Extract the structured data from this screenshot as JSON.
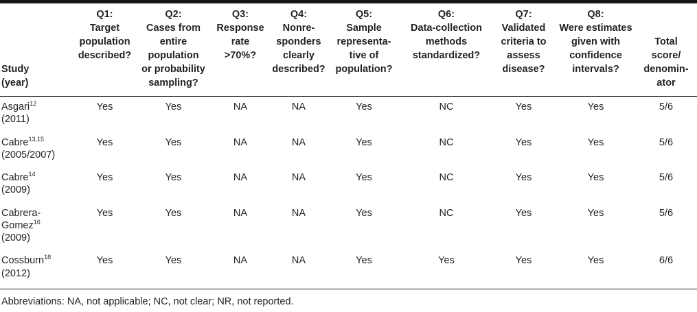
{
  "table": {
    "columns": [
      {
        "key": "study",
        "label": "Study\n(year)"
      },
      {
        "key": "q1",
        "label": "Q1:\nTarget\npopulation\ndescribed?"
      },
      {
        "key": "q2",
        "label": "Q2:\nCases from\nentire\npopulation\nor probability\nsampling?"
      },
      {
        "key": "q3",
        "label": "Q3:\nResponse\nrate\n>70%?"
      },
      {
        "key": "q4",
        "label": "Q4:\nNonre-\nsponders\nclearly\ndescribed?"
      },
      {
        "key": "q5",
        "label": "Q5:\nSample\nrepresenta-\ntive of\npopulation?"
      },
      {
        "key": "q6",
        "label": "Q6:\nData-collection\nmethods\nstandardized?"
      },
      {
        "key": "q7",
        "label": "Q7:\nValidated\ncriteria to\nassess\ndisease?"
      },
      {
        "key": "q8",
        "label": "Q8:\nWere estimates\ngiven with\nconfidence\nintervals?"
      },
      {
        "key": "total",
        "label": "Total\nscore/\ndenomin-\nator"
      }
    ],
    "rows": [
      {
        "study": "Asgari",
        "ref": "12",
        "year": "(2011)",
        "values": [
          "Yes",
          "Yes",
          "NA",
          "NA",
          "Yes",
          "NC",
          "Yes",
          "Yes",
          "5/6"
        ]
      },
      {
        "study": "Cabre",
        "ref": "13,15",
        "year": "(2005/2007)",
        "values": [
          "Yes",
          "Yes",
          "NA",
          "NA",
          "Yes",
          "NC",
          "Yes",
          "Yes",
          "5/6"
        ]
      },
      {
        "study": "Cabre",
        "ref": "14",
        "year": "(2009)",
        "values": [
          "Yes",
          "Yes",
          "NA",
          "NA",
          "Yes",
          "NC",
          "Yes",
          "Yes",
          "5/6"
        ]
      },
      {
        "study": "Cabrera-\nGomez",
        "ref": "16",
        "year": "(2009)",
        "values": [
          "Yes",
          "Yes",
          "NA",
          "NA",
          "Yes",
          "NC",
          "Yes",
          "Yes",
          "5/6"
        ]
      },
      {
        "study": "Cossburn",
        "ref": "18",
        "year": "(2012)",
        "values": [
          "Yes",
          "Yes",
          "NA",
          "NA",
          "Yes",
          "Yes",
          "Yes",
          "Yes",
          "6/6"
        ]
      }
    ],
    "footnote": "Abbreviations: NA, not applicable; NC, not clear; NR, not reported."
  }
}
